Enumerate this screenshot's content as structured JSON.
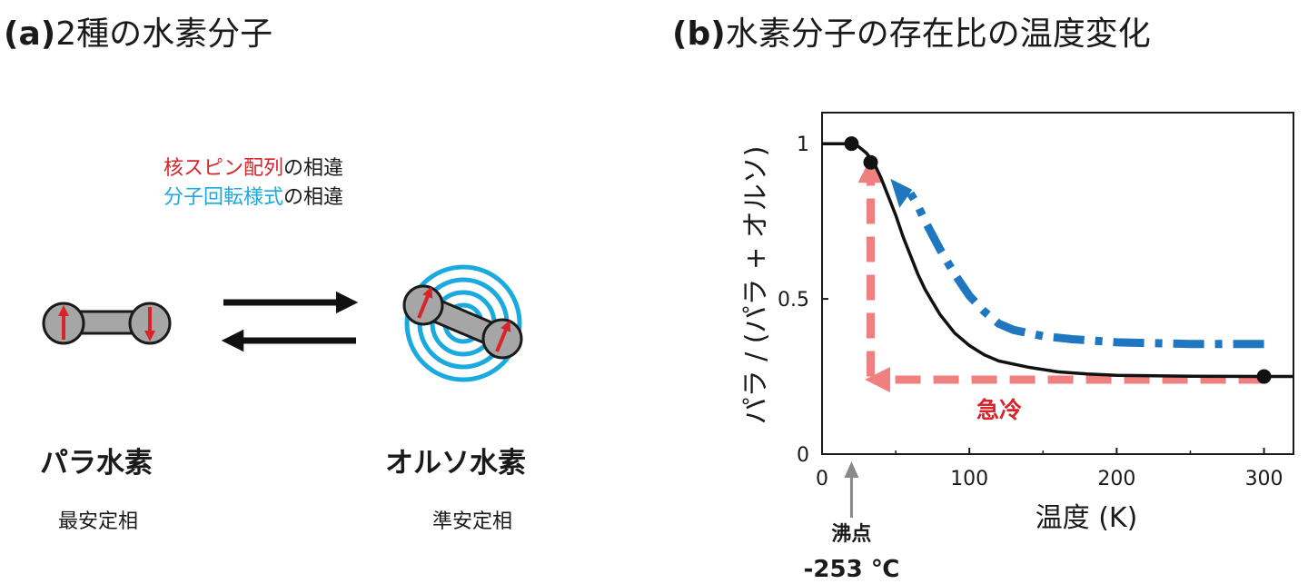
{
  "panel_a": {
    "heading_tag": "(a)",
    "heading_text": "2種の水素分子",
    "difference_1_red": "核スピン配列",
    "difference_1_rest": "の相違",
    "difference_2_cyan": "分子回転様式",
    "difference_2_rest": "の相違",
    "para_name": "パラ水素",
    "para_phase": "最安定相",
    "ortho_name": "オルソ水素",
    "ortho_phase": "準安定相"
  },
  "panel_b": {
    "heading_tag": "(b)",
    "heading_text": "水素分子の存在比の温度変化",
    "quench_label": "急冷",
    "boiling_point_label": "沸点",
    "boiling_point_value": "-253 ℃"
  },
  "colors": {
    "red": "#d8232a",
    "cyan": "#1aaadf",
    "blue_dashdot": "#1f77c0",
    "pink_dashed": "#f08080",
    "atom_gray": "#a6a6a6"
  },
  "chart_data": {
    "type": "line",
    "xlabel": "温度 (K)",
    "ylabel": "パラ / (パラ + オルソ)",
    "xlim": [
      0,
      320
    ],
    "ylim": [
      0,
      1.1
    ],
    "x_ticks": [
      0,
      100,
      200,
      300
    ],
    "y_ticks": [
      0,
      0.5,
      1
    ],
    "x_tick_labels": [
      "0",
      "100",
      "200",
      "300"
    ],
    "y_tick_labels": [
      "0",
      "0.5",
      "1"
    ],
    "equilibrium_curve": {
      "x": [
        0,
        10,
        20,
        25,
        30,
        35,
        40,
        45,
        50,
        55,
        60,
        65,
        70,
        75,
        80,
        90,
        100,
        110,
        120,
        140,
        160,
        180,
        200,
        250,
        300,
        320
      ],
      "y": [
        1.0,
        1.0,
        1.0,
        0.99,
        0.97,
        0.94,
        0.89,
        0.83,
        0.77,
        0.7,
        0.64,
        0.58,
        0.53,
        0.49,
        0.45,
        0.39,
        0.35,
        0.32,
        0.3,
        0.28,
        0.265,
        0.258,
        0.254,
        0.251,
        0.25,
        0.25
      ]
    },
    "markers": [
      {
        "x": 20,
        "y": 1.0
      },
      {
        "x": 33,
        "y": 0.94
      },
      {
        "x": 300,
        "y": 0.25
      }
    ],
    "warming_path_blue": {
      "x": [
        60,
        65,
        70,
        80,
        90,
        100,
        110,
        120,
        130,
        150,
        170,
        200,
        250,
        300
      ],
      "y": [
        0.84,
        0.8,
        0.75,
        0.66,
        0.58,
        0.51,
        0.46,
        0.42,
        0.4,
        0.38,
        0.37,
        0.36,
        0.355,
        0.355
      ]
    },
    "quench_path_horizontal": {
      "x": [
        300,
        45
      ],
      "y": [
        0.24,
        0.24
      ]
    },
    "quench_path_vertical": {
      "x": [
        33,
        33
      ],
      "y": [
        0.25,
        0.88
      ]
    },
    "boiling_point_x": 20
  }
}
